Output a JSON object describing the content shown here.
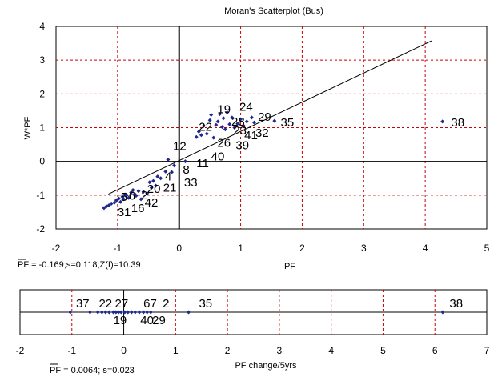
{
  "chart_data": [
    {
      "type": "scatter",
      "title": "Moran's Scatterplot (Bus)",
      "xlabel": "PF",
      "ylabel": "W*PF",
      "xlim": [
        -2,
        5
      ],
      "ylim": [
        -2,
        4
      ],
      "xticks": [
        "-2",
        "-1",
        "0",
        "1",
        "2",
        "3",
        "4",
        "5"
      ],
      "yticks": [
        "-2",
        "-1",
        "0",
        "1",
        "2",
        "3",
        "4"
      ],
      "grid": true,
      "stat_text": "PF = -0.169;s=0.118;Z(I)=10.39",
      "marker_color": "#1f2a8c",
      "grid_color": "#cc0000",
      "regression_line": {
        "x": [
          -1.15,
          4.1
        ],
        "y": [
          -0.97,
          3.57
        ]
      },
      "points": [
        {
          "x": -1.22,
          "y": -1.38
        },
        {
          "x": -1.18,
          "y": -1.33
        },
        {
          "x": -1.14,
          "y": -1.3
        },
        {
          "x": -1.1,
          "y": -1.25
        },
        {
          "x": -1.05,
          "y": -1.22
        },
        {
          "x": -1.02,
          "y": -1.15
        },
        {
          "x": -0.98,
          "y": -1.1
        },
        {
          "x": -0.95,
          "y": -1.2
        },
        {
          "x": -0.92,
          "y": -1.05
        },
        {
          "x": -0.9,
          "y": -1.12
        },
        {
          "x": -0.88,
          "y": -0.98
        },
        {
          "x": -0.85,
          "y": -1.0
        },
        {
          "x": -0.82,
          "y": -1.08
        },
        {
          "x": -0.78,
          "y": -0.92
        },
        {
          "x": -0.75,
          "y": -0.85
        },
        {
          "x": -0.72,
          "y": -0.97
        },
        {
          "x": -0.7,
          "y": -1.02
        },
        {
          "x": -0.66,
          "y": -0.88
        },
        {
          "x": -0.62,
          "y": -1.12
        },
        {
          "x": -0.58,
          "y": -0.9
        },
        {
          "x": -0.52,
          "y": -0.95
        },
        {
          "x": -0.48,
          "y": -0.62
        },
        {
          "x": -0.45,
          "y": -0.78
        },
        {
          "x": -0.42,
          "y": -0.58
        },
        {
          "x": -0.38,
          "y": -0.72
        },
        {
          "x": -0.35,
          "y": -0.45
        },
        {
          "x": -0.3,
          "y": -0.5
        },
        {
          "x": -0.22,
          "y": -0.3
        },
        {
          "x": -0.18,
          "y": 0.05
        },
        {
          "x": -0.12,
          "y": -0.32
        },
        {
          "x": -0.08,
          "y": -0.12
        },
        {
          "x": 0.1,
          "y": 0.0
        },
        {
          "x": 0.28,
          "y": 0.72
        },
        {
          "x": 0.32,
          "y": 0.88
        },
        {
          "x": 0.36,
          "y": 0.78
        },
        {
          "x": 0.4,
          "y": 1.05
        },
        {
          "x": 0.45,
          "y": 0.82
        },
        {
          "x": 0.5,
          "y": 1.22
        },
        {
          "x": 0.52,
          "y": 1.38
        },
        {
          "x": 0.56,
          "y": 0.7
        },
        {
          "x": 0.6,
          "y": 1.08
        },
        {
          "x": 0.63,
          "y": 1.18
        },
        {
          "x": 0.66,
          "y": 1.4
        },
        {
          "x": 0.7,
          "y": 1.02
        },
        {
          "x": 0.72,
          "y": 1.28
        },
        {
          "x": 0.75,
          "y": 0.95
        },
        {
          "x": 0.78,
          "y": 1.45
        },
        {
          "x": 0.82,
          "y": 1.1
        },
        {
          "x": 0.86,
          "y": 1.3
        },
        {
          "x": 0.9,
          "y": 1.0
        },
        {
          "x": 0.95,
          "y": 1.12
        },
        {
          "x": 1.0,
          "y": 1.25
        },
        {
          "x": 1.05,
          "y": 1.05
        },
        {
          "x": 1.1,
          "y": 1.18
        },
        {
          "x": 1.18,
          "y": 1.3
        },
        {
          "x": 1.22,
          "y": 1.15
        },
        {
          "x": 1.55,
          "y": 1.2
        },
        {
          "x": 4.28,
          "y": 1.18
        }
      ],
      "labels": [
        {
          "text": "38",
          "x": 4.42,
          "y": 1.16
        },
        {
          "text": "35",
          "x": 1.65,
          "y": 1.16
        },
        {
          "text": "29",
          "x": 1.28,
          "y": 1.32
        },
        {
          "text": "24",
          "x": 0.98,
          "y": 1.62
        },
        {
          "text": "19",
          "x": 0.62,
          "y": 1.55
        },
        {
          "text": "28",
          "x": 0.85,
          "y": 1.18
        },
        {
          "text": "22",
          "x": 0.32,
          "y": 1.02
        },
        {
          "text": "23",
          "x": 0.88,
          "y": 0.92
        },
        {
          "text": "41",
          "x": 1.06,
          "y": 0.78
        },
        {
          "text": "32",
          "x": 1.24,
          "y": 0.85
        },
        {
          "text": "26",
          "x": 0.62,
          "y": 0.55
        },
        {
          "text": "39",
          "x": 0.92,
          "y": 0.48
        },
        {
          "text": "12",
          "x": -0.1,
          "y": 0.45
        },
        {
          "text": "40",
          "x": 0.52,
          "y": 0.15
        },
        {
          "text": "11",
          "x": 0.28,
          "y": -0.05
        },
        {
          "text": "8",
          "x": 0.06,
          "y": -0.25
        },
        {
          "text": "4",
          "x": -0.23,
          "y": -0.45
        },
        {
          "text": "33",
          "x": 0.08,
          "y": -0.62
        },
        {
          "text": "21",
          "x": -0.26,
          "y": -0.78
        },
        {
          "text": "20",
          "x": -0.52,
          "y": -0.82
        },
        {
          "text": "5",
          "x": -0.95,
          "y": -1.05
        },
        {
          "text": "2",
          "x": -0.62,
          "y": -1.0
        },
        {
          "text": "6",
          "x": -0.82,
          "y": -1.02
        },
        {
          "text": "42",
          "x": -0.56,
          "y": -1.22
        },
        {
          "text": "16",
          "x": -0.78,
          "y": -1.38
        },
        {
          "text": "31",
          "x": -1.0,
          "y": -1.5
        }
      ]
    },
    {
      "type": "scatter",
      "xlabel": "PF change/5yrs",
      "xlim": [
        -2,
        7
      ],
      "xticks": [
        "-2",
        "-1",
        "0",
        "1",
        "2",
        "3",
        "4",
        "5",
        "6",
        "7"
      ],
      "grid": true,
      "stat_text": "PF = 0.0064; s=0.023",
      "marker_color": "#1f2a8c",
      "grid_color": "#cc0000",
      "points": [
        {
          "x": -1.03
        },
        {
          "x": -0.65
        },
        {
          "x": -0.5
        },
        {
          "x": -0.42
        },
        {
          "x": -0.35
        },
        {
          "x": -0.28
        },
        {
          "x": -0.2
        },
        {
          "x": -0.15
        },
        {
          "x": -0.1
        },
        {
          "x": -0.05
        },
        {
          "x": 0.02
        },
        {
          "x": 0.08
        },
        {
          "x": 0.15
        },
        {
          "x": 0.22
        },
        {
          "x": 0.3
        },
        {
          "x": 0.38
        },
        {
          "x": 0.45
        },
        {
          "x": 0.52
        },
        {
          "x": 1.25
        },
        {
          "x": 6.15
        }
      ],
      "labels": [
        {
          "text": "37",
          "x": -0.92,
          "above": true
        },
        {
          "text": "22",
          "x": -0.48,
          "above": true
        },
        {
          "text": "27",
          "x": -0.17,
          "above": true
        },
        {
          "text": "67",
          "x": 0.38,
          "above": true
        },
        {
          "text": "2",
          "x": 0.75,
          "above": true
        },
        {
          "text": "35",
          "x": 1.45,
          "above": true
        },
        {
          "text": "38",
          "x": 6.28,
          "above": true
        },
        {
          "text": "19",
          "x": -0.2,
          "above": false
        },
        {
          "text": "40",
          "x": 0.32,
          "above": false
        },
        {
          "text": "29",
          "x": 0.55,
          "above": false
        }
      ]
    }
  ]
}
